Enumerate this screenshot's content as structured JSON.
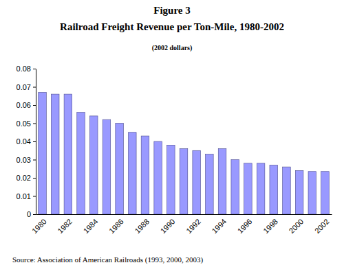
{
  "chart_data": {
    "type": "bar",
    "title": "Railroad Freight Revenue per Ton-Mile, 1980-2002",
    "subtitle": "(2002 dollars)",
    "annotations": [
      "Figure 3",
      "Source: Association of American Railroads (1993, 2000, 2003)"
    ],
    "categories": [
      "1980",
      null,
      "1982",
      null,
      "1984",
      null,
      "1986",
      null,
      "1988",
      null,
      "1990",
      null,
      "1992",
      null,
      "1994",
      null,
      "1996",
      null,
      "1998",
      null,
      "2000",
      null,
      "2002"
    ],
    "values": [
      0.067,
      0.066,
      0.066,
      0.056,
      0.054,
      0.052,
      0.05,
      0.045,
      0.043,
      0.04,
      0.038,
      0.036,
      0.035,
      0.033,
      0.036,
      0.03,
      0.028,
      0.028,
      0.027,
      0.026,
      0.024,
      0.0235,
      0.0235
    ],
    "color": "#9999ff",
    "ylim": [
      0,
      0.08
    ],
    "yticks": [
      0,
      0.01,
      0.02,
      0.03,
      0.04,
      0.05,
      0.06,
      0.07,
      0.08
    ],
    "grid": false
  }
}
